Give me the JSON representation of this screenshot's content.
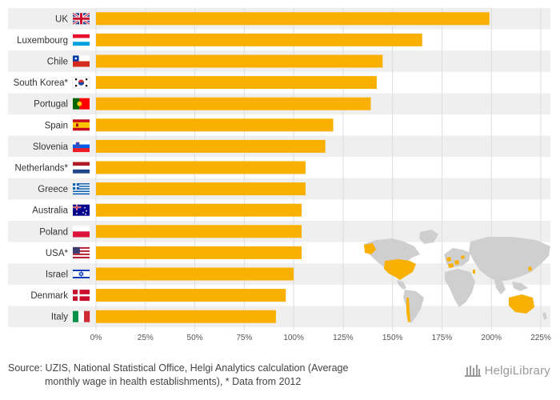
{
  "chart_data": {
    "type": "bar",
    "orientation": "horizontal",
    "categories": [
      "UK",
      "Luxembourg",
      "Chile",
      "South Korea*",
      "Portugal",
      "Spain",
      "Slovenia",
      "Netherlands*",
      "Greece",
      "Australia",
      "Poland",
      "USA*",
      "Israel",
      "Denmark",
      "Italy"
    ],
    "values": [
      199,
      165,
      145,
      142,
      139,
      120,
      116,
      106,
      106,
      104,
      104,
      104,
      100,
      96,
      91
    ],
    "xlim": [
      0,
      225
    ],
    "xticks": [
      0,
      25,
      50,
      75,
      100,
      125,
      150,
      175,
      200,
      225
    ],
    "tick_suffix": "%",
    "bar_color": "#F9B000",
    "grid": true,
    "title": "",
    "xlabel": "",
    "ylabel": ""
  },
  "footer": {
    "source_line1": "Source: UZIS, National Statistical Office, Helgi Analytics calculation (Average",
    "source_line2": "monthly wage in health establishments), * Data from 2012"
  },
  "logo": {
    "text": "HelgiLibrary"
  },
  "colors": {
    "bar": "#F9B000",
    "row_stripe": "#efefef",
    "grid": "#dddddd",
    "map_land": "#cfcfcf",
    "map_highlight": "#F9B000"
  },
  "icons": {
    "flags": [
      "uk-flag-icon",
      "luxembourg-flag-icon",
      "chile-flag-icon",
      "south-korea-flag-icon",
      "portugal-flag-icon",
      "spain-flag-icon",
      "slovenia-flag-icon",
      "netherlands-flag-icon",
      "greece-flag-icon",
      "australia-flag-icon",
      "poland-flag-icon",
      "usa-flag-icon",
      "israel-flag-icon",
      "denmark-flag-icon",
      "italy-flag-icon"
    ],
    "logo": "library-building-icon"
  }
}
